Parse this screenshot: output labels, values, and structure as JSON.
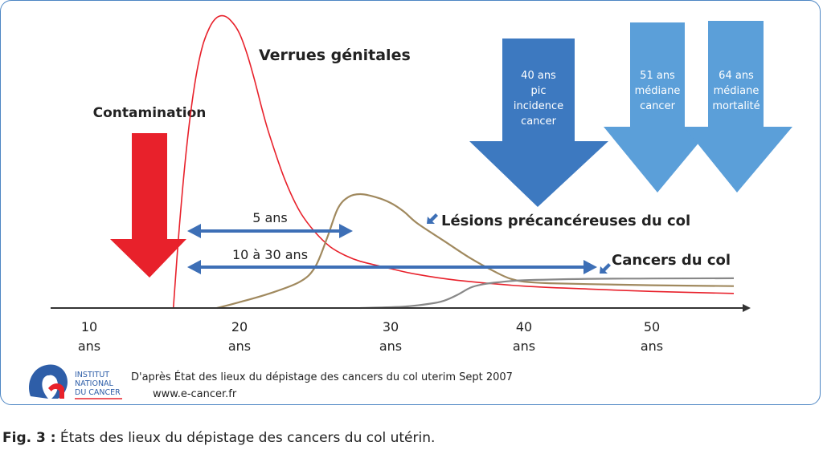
{
  "chart_data": {
    "type": "line",
    "x_ticks": [
      {
        "value": 10,
        "label": "10",
        "unit": "ans"
      },
      {
        "value": 20,
        "label": "20",
        "unit": "ans"
      },
      {
        "value": 30,
        "label": "30",
        "unit": "ans"
      },
      {
        "value": 40,
        "label": "40",
        "unit": "ans"
      },
      {
        "value": 50,
        "label": "50",
        "unit": "ans"
      }
    ],
    "xlim": [
      8.5,
      57
    ],
    "ylim": [
      0,
      100
    ],
    "series": [
      {
        "name": "Verrues génitales",
        "color": "#e8212b",
        "x": [
          15.6,
          16.0,
          16.5,
          17.0,
          17.5,
          18.0,
          18.5,
          19.0,
          19.5,
          20.0,
          20.5,
          21.0,
          21.5,
          22.0,
          23.0,
          24.0,
          25.0,
          26.0,
          27.0,
          28.0,
          30.0,
          32.0,
          35.0,
          40.0,
          45.0,
          50.0,
          56.0
        ],
        "y": [
          0,
          28,
          56,
          76,
          89,
          96,
          99.5,
          100,
          98,
          94,
          87,
          78,
          68,
          59,
          44,
          33,
          26,
          21,
          18,
          16,
          13.5,
          11.5,
          9.5,
          7.5,
          6.5,
          5.7,
          5
        ]
      },
      {
        "name": "Lésions précancéreuses du col",
        "color": "#a0895e",
        "x": [
          18.5,
          20,
          22,
          24,
          25,
          25.8,
          26.5,
          27.2,
          28,
          29,
          30,
          31,
          32,
          34,
          36,
          38,
          39,
          40,
          42,
          45,
          50,
          56
        ],
        "y": [
          0,
          2,
          5,
          9,
          14,
          24,
          34,
          38,
          39,
          38,
          36,
          33,
          29,
          23,
          17,
          12,
          10,
          9,
          8.5,
          8.2,
          7.8,
          7.5
        ]
      },
      {
        "name": "Cancers du col",
        "color": "#888888",
        "x": [
          28,
          31,
          33,
          34,
          35,
          36,
          37,
          38,
          40,
          45,
          50,
          56
        ],
        "y": [
          0,
          0.5,
          1.5,
          2.5,
          4.5,
          7,
          8.2,
          8.8,
          9.5,
          10,
          10.1,
          10.2
        ]
      }
    ],
    "markers": [
      {
        "label": "Contamination",
        "x": 14,
        "color": "#e8212b"
      },
      {
        "label": "40 ans\npic\nincidence\ncancer",
        "x": 40,
        "color": "#3d79c0"
      },
      {
        "label": "51 ans\nmédiane\ncancer",
        "x": 51,
        "color": "#5b9fd9"
      },
      {
        "label": "64 ans\nmédiane\nmortalité",
        "x": 56.3,
        "color": "#5b9fd9"
      }
    ],
    "intervals": [
      {
        "label": "5 ans",
        "x_start": 16.8,
        "x_end": 27.5
      },
      {
        "label": "10 à 30 ans",
        "x_start": 16.8,
        "x_end": 46
      }
    ],
    "annotations": [
      "Verrues génitales",
      "Lésions précancéreuses du col",
      "Cancers du col"
    ]
  },
  "source": {
    "logo_lines": [
      "INSTITUT",
      "NATIONAL",
      "DU CANCER"
    ],
    "text": "D'après État des lieux du dépistage des cancers du col uterim Sept 2007",
    "url": "www.e-cancer.fr"
  },
  "caption": {
    "label": "Fig. 3 :",
    "text": " États des lieux du dépistage des cancers du col utérin."
  },
  "colors": {
    "frame": "#4d86c4",
    "arrow_blue": "#3d6fb6",
    "dark_blue": "#3d79c0",
    "light_blue": "#5b9fd9",
    "red": "#e8212b"
  }
}
